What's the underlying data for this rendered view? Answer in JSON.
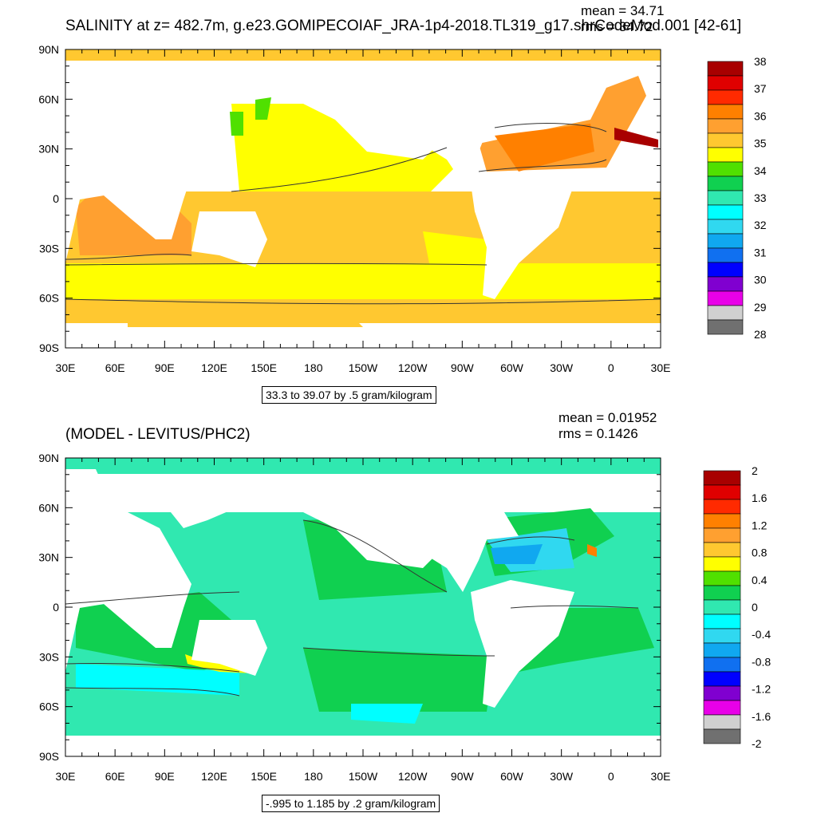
{
  "chart_data": [
    {
      "type": "heatmap",
      "title": "SALINITY at z= 482.7m, g.e23.GOMIPECOIAF_JRA-1p4-2018.TL319_g17.shrCodeMod.001 [42-61]",
      "stats": {
        "mean": "mean = 34.71",
        "rms": "rms = 34.72"
      },
      "x_tick_labels": [
        "30E",
        "60E",
        "90E",
        "120E",
        "150E",
        "180",
        "150W",
        "120W",
        "90W",
        "60W",
        "30W",
        "0",
        "30E"
      ],
      "y_tick_labels": [
        "90N",
        "60N",
        "30N",
        "0",
        "30S",
        "60S",
        "90S"
      ],
      "x_range": [
        30,
        390
      ],
      "y_range": [
        -90,
        90
      ],
      "colorbar_labels": [
        "38",
        "37",
        "36",
        "35",
        "34",
        "33",
        "32",
        "31",
        "30",
        "29",
        "28"
      ],
      "colorbar_colors": [
        "#a80000",
        "#e00000",
        "#ff2a00",
        "#ff8000",
        "#ffa030",
        "#ffc830",
        "#ffff00",
        "#50e000",
        "#10d050",
        "#30e8b0",
        "#00ffff",
        "#30d8f0",
        "#10a8f0",
        "#1070f0",
        "#0000ff",
        "#8000d0",
        "#e800e8",
        "#d0d0d0",
        "#707070"
      ],
      "contour_info": "33.3 to 39.07 by .5 gram/kilogram"
    },
    {
      "type": "heatmap",
      "title": "(MODEL - LEVITUS/PHC2)",
      "stats": {
        "mean": "mean = 0.01952",
        "rms": "rms = 0.1426"
      },
      "x_tick_labels": [
        "30E",
        "60E",
        "90E",
        "120E",
        "150E",
        "180",
        "150W",
        "120W",
        "90W",
        "60W",
        "30W",
        "0",
        "30E"
      ],
      "y_tick_labels": [
        "90N",
        "60N",
        "30N",
        "0",
        "30S",
        "60S",
        "90S"
      ],
      "x_range": [
        30,
        390
      ],
      "y_range": [
        -90,
        90
      ],
      "colorbar_labels": [
        "2",
        "1.6",
        "1.2",
        "0.8",
        "0.4",
        "0",
        "-0.4",
        "-0.8",
        "-1.2",
        "-1.6",
        "-2"
      ],
      "colorbar_colors": [
        "#a80000",
        "#e00000",
        "#ff2a00",
        "#ff8000",
        "#ffa030",
        "#ffc830",
        "#ffff00",
        "#50e000",
        "#10d050",
        "#30e8b0",
        "#00ffff",
        "#30d8f0",
        "#10a8f0",
        "#1070f0",
        "#0000ff",
        "#8000d0",
        "#e800e8",
        "#d0d0d0",
        "#707070"
      ],
      "contour_info": "-.995 to 1.185 by .2 gram/kilogram"
    }
  ]
}
